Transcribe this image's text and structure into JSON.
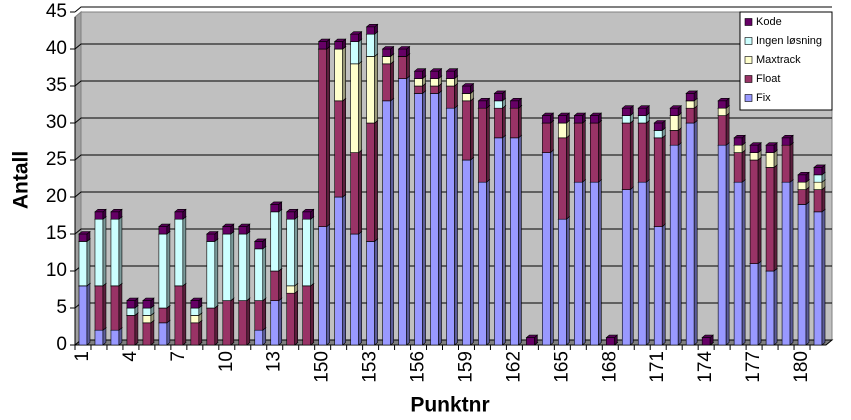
{
  "chart_data": {
    "type": "stacked-bar",
    "x_label": "Punktnr",
    "y_label": "Antall",
    "categories": [
      "1",
      null,
      null,
      "4",
      null,
      null,
      "7",
      null,
      null,
      "10",
      null,
      null,
      "13",
      null,
      null,
      "150",
      null,
      null,
      "153",
      null,
      null,
      "156",
      null,
      null,
      "159",
      null,
      null,
      "162",
      null,
      null,
      "165",
      null,
      null,
      "168",
      null,
      null,
      "171",
      null,
      null,
      "174",
      null,
      null,
      "177",
      null,
      null,
      "180",
      null
    ],
    "series": [
      {
        "name": "Fix",
        "color": "#9999ff",
        "values": [
          8,
          2,
          2,
          0,
          0,
          3,
          0,
          0,
          0,
          0,
          0,
          2,
          6,
          0,
          0,
          16,
          20,
          15,
          14,
          33,
          36,
          34,
          34,
          32,
          25,
          22,
          28,
          28,
          0,
          26,
          17,
          22,
          22,
          0,
          21,
          22,
          16,
          27,
          30,
          0,
          27,
          22,
          11,
          10,
          22,
          19,
          18
        ]
      },
      {
        "name": "Float",
        "color": "#993366",
        "values": [
          0,
          6,
          6,
          4,
          3,
          2,
          8,
          3,
          5,
          6,
          6,
          4,
          4,
          7,
          8,
          24,
          13,
          11,
          16,
          5,
          3,
          1,
          1,
          3,
          8,
          10,
          4,
          4,
          0,
          4,
          11,
          8,
          8,
          0,
          9,
          8,
          12,
          2,
          2,
          0,
          4,
          4,
          14,
          14,
          5,
          2,
          3
        ]
      },
      {
        "name": "Maxtrack",
        "color": "#ffffcc",
        "values": [
          0,
          0,
          0,
          0,
          1,
          0,
          0,
          1,
          0,
          0,
          0,
          0,
          0,
          1,
          0,
          0,
          7,
          12,
          9,
          1,
          0,
          1,
          1,
          1,
          1,
          0,
          0,
          0,
          0,
          0,
          2,
          0,
          0,
          0,
          0,
          0,
          0,
          2,
          1,
          0,
          1,
          1,
          1,
          2,
          0,
          1,
          1
        ]
      },
      {
        "name": "Ingen løsning",
        "color": "#ccffff",
        "values": [
          6,
          9,
          9,
          1,
          1,
          10,
          9,
          1,
          9,
          9,
          9,
          7,
          8,
          9,
          9,
          0,
          0,
          3,
          3,
          0,
          0,
          0,
          0,
          0,
          0,
          0,
          1,
          0,
          0,
          0,
          0,
          0,
          0,
          0,
          1,
          1,
          1,
          0,
          0,
          0,
          0,
          0,
          0,
          0,
          0,
          0,
          1
        ]
      },
      {
        "name": "Kode",
        "color": "#660066",
        "values": [
          1,
          1,
          1,
          1,
          1,
          1,
          1,
          1,
          1,
          1,
          1,
          1,
          1,
          1,
          1,
          1,
          1,
          1,
          1,
          1,
          1,
          1,
          1,
          1,
          1,
          1,
          1,
          1,
          1,
          1,
          1,
          1,
          1,
          1,
          1,
          1,
          1,
          1,
          1,
          1,
          1,
          1,
          1,
          1,
          1,
          1,
          1
        ]
      }
    ],
    "ylim": [
      0,
      45
    ],
    "yticks": [
      0,
      5,
      10,
      15,
      20,
      25,
      30,
      35,
      40,
      45
    ],
    "grid": true,
    "plot_background": "#c0c0c0",
    "legend": "top-right"
  }
}
